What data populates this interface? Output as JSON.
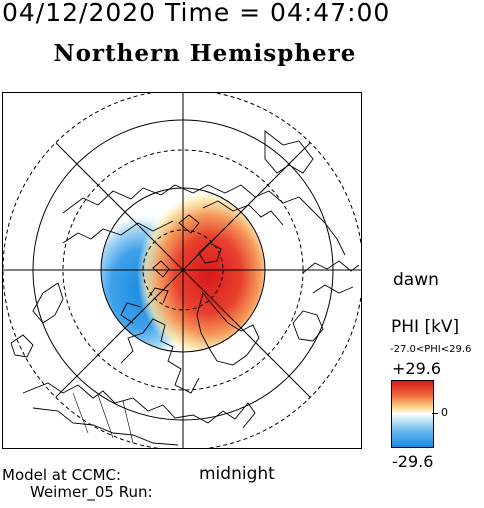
{
  "header": {
    "timestamp": "04/12/2020 Time = 04:47:00",
    "hemisphere_title": "Northern Hemisphere"
  },
  "map": {
    "projection": "polar stereographic, north pole centered",
    "orientation": {
      "right": "dawn",
      "bottom": "midnight"
    },
    "dawn_label": "dawn",
    "midnight_label": "midnight",
    "latitude_circles": "dashed and solid concentric rings",
    "meridian_lines": "radial lines every 45 degrees",
    "potential_pattern": {
      "positive_cell_side": "dawn / right of center",
      "negative_cell_side": "dusk / left of center"
    }
  },
  "colorbar": {
    "quantity_label": "PHI [kV]",
    "range_text": "-27.0<PHI<29.6",
    "max_label": "+29.6",
    "zero_label": "0",
    "min_label": "-29.6",
    "colors": {
      "max": "#d7191c",
      "mid": "#ffffff",
      "min": "#1a8be0"
    }
  },
  "footer": {
    "model_line1": "Model at CCMC:",
    "model_line2": "Weimer_05 Run:"
  }
}
